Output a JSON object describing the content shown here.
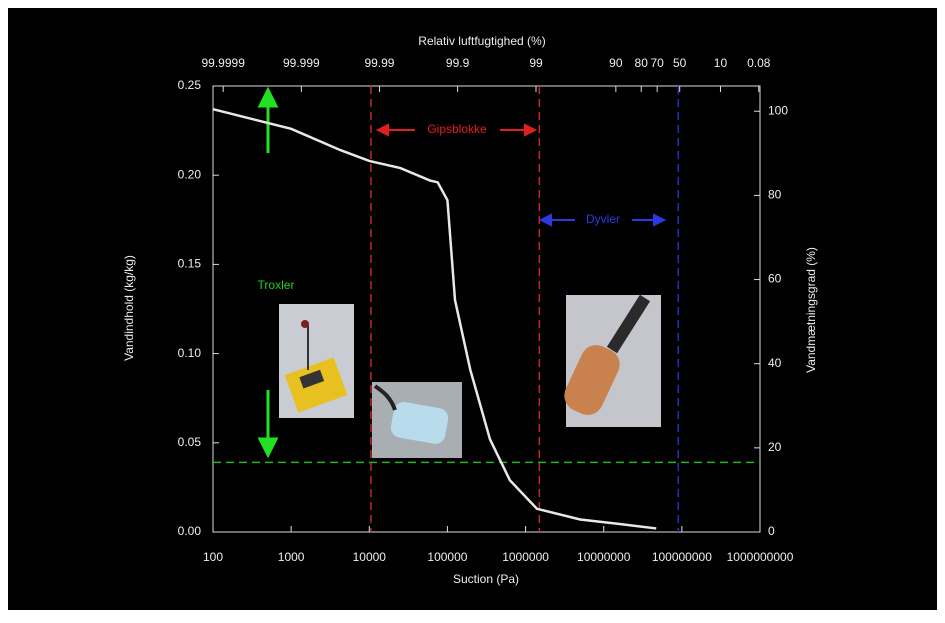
{
  "chart_data": {
    "type": "line",
    "top_axis_label": "Relativ luftfugtighed (%)",
    "xlabel": "Suction (Pa)",
    "ylabel": "Vandindhold (kg/kg)",
    "y2label": "Vandmætningsgrad (%)",
    "x_log": true,
    "xlim": [
      100,
      1000000000
    ],
    "xticks": [
      100,
      1000,
      10000,
      100000,
      1000000,
      10000000,
      100000000,
      1000000000
    ],
    "top_xticks": [
      {
        "value": 135,
        "label": "99.9999"
      },
      {
        "value": 1350,
        "label": "99.999"
      },
      {
        "value": 13500,
        "label": "99.99"
      },
      {
        "value": 135000,
        "label": "99.9"
      },
      {
        "value": 1360000,
        "label": "99"
      },
      {
        "value": 14300000,
        "label": "90"
      },
      {
        "value": 30200000,
        "label": "80"
      },
      {
        "value": 48300000,
        "label": "70"
      },
      {
        "value": 93800000,
        "label": "50"
      },
      {
        "value": 312000000,
        "label": "10"
      },
      {
        "value": 964000000,
        "label": "0.08"
      }
    ],
    "ylim": [
      0,
      0.25
    ],
    "yticks": [
      {
        "value": 0,
        "label": "0.00"
      },
      0.05,
      {
        "value": 0.1,
        "label": "0.10"
      },
      0.15,
      {
        "value": 0.2,
        "label": "0.20"
      },
      0.25
    ],
    "y2lim": [
      0,
      106
    ],
    "y2ticks": [
      0,
      20,
      40,
      60,
      80,
      100
    ],
    "series": [
      {
        "color": "#e8e8e8",
        "x": [
          100,
          1000,
          4300,
          10000,
          25000,
          60000,
          75000,
          100000,
          125000,
          196000,
          350000,
          630000,
          1400000,
          5000000,
          16000000,
          47000000
        ],
        "values": [
          0.237,
          0.226,
          0.214,
          0.208,
          0.204,
          0.197,
          0.196,
          0.186,
          0.13,
          0.091,
          0.052,
          0.029,
          0.013,
          0.007,
          0.0045,
          0.002
        ]
      }
    ],
    "vlines": [
      {
        "value": 10500,
        "color": "#c0282a"
      },
      {
        "value": 1500000,
        "color": "#c0282a"
      },
      {
        "value": 90000000,
        "color": "#2430c8"
      }
    ],
    "hline": {
      "value": 0.039,
      "color": "#22b522"
    },
    "annotations": [
      {
        "text": "Gipsblokke",
        "color": "#e02020"
      },
      {
        "text": "Dyvler",
        "color": "#2a3ae0"
      },
      {
        "text": "Troxler",
        "color": "#22d022"
      }
    ]
  }
}
